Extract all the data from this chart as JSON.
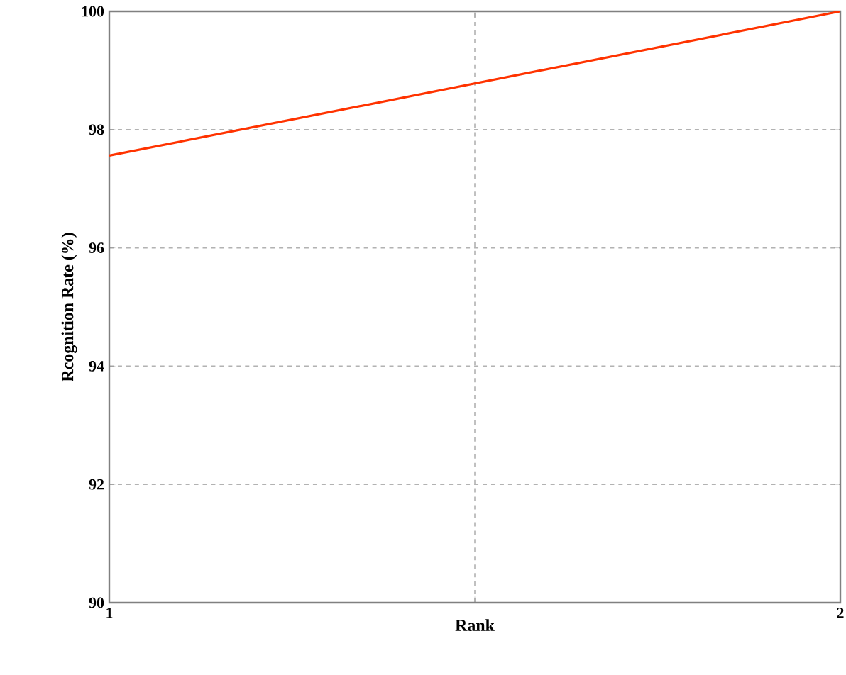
{
  "chart_data": {
    "type": "line",
    "xlabel": "Rank",
    "ylabel": "Rcognition Rate (%)",
    "x": [
      1,
      2
    ],
    "series": [
      {
        "color": "#ff3300",
        "values": [
          97.56,
          100
        ]
      }
    ],
    "xlim": [
      1,
      2
    ],
    "ylim": [
      90,
      100
    ],
    "xticks": [
      1,
      {
        "value": 1.5,
        "label": null
      },
      2
    ],
    "yticks": [
      90,
      92,
      94,
      96,
      98,
      100
    ],
    "grid": true,
    "marker": "none",
    "line_style": "solid"
  }
}
